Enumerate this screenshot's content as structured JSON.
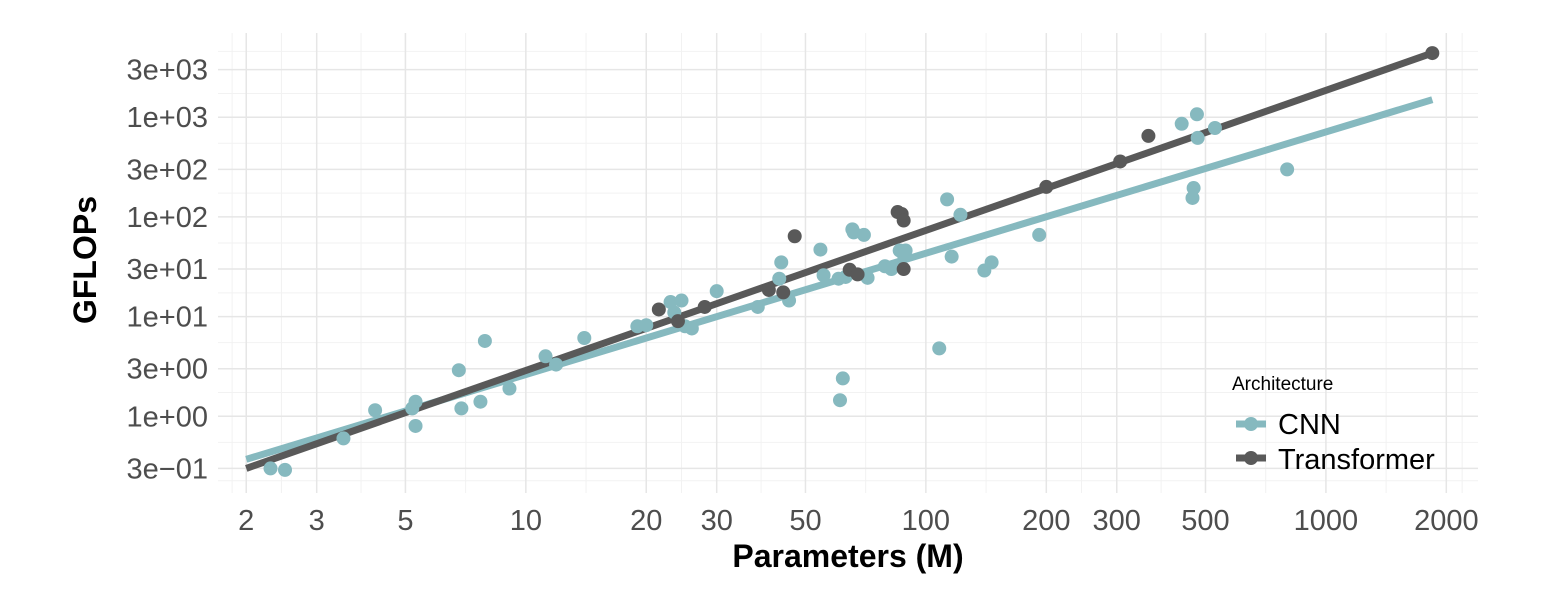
{
  "chart_data": {
    "type": "scatter",
    "xlabel": "Parameters (M)",
    "ylabel": "GFLOPs",
    "x_scale": "log",
    "y_scale": "log",
    "xlim": [
      1.7,
      2400
    ],
    "ylim": [
      0.17,
      7000
    ],
    "x_ticks": [
      2,
      3,
      5,
      10,
      20,
      30,
      50,
      100,
      200,
      300,
      500,
      1000,
      2000
    ],
    "x_tick_labels": [
      "2",
      "3",
      "5",
      "10",
      "20",
      "30",
      "50",
      "100",
      "200",
      "300",
      "500",
      "1000",
      "2000"
    ],
    "y_ticks": [
      0.3,
      1,
      3,
      10,
      30,
      100,
      300,
      1000,
      3000
    ],
    "y_tick_labels": [
      "3e−01",
      "1e+00",
      "3e+00",
      "1e+01",
      "3e+01",
      "1e+02",
      "3e+02",
      "1e+03",
      "3e+03"
    ],
    "grid": true,
    "legend": {
      "title": "Architecture",
      "position": "bottom-right",
      "entries": [
        "CNN",
        "Transformer"
      ]
    },
    "series": [
      {
        "name": "CNN",
        "color": "#86b9bf",
        "fit_line": {
          "x": [
            2,
            1845
          ],
          "y": [
            0.37,
            1500
          ]
        },
        "points": [
          [
            2.3,
            0.3
          ],
          [
            2.5,
            0.29
          ],
          [
            3.5,
            0.6
          ],
          [
            4.2,
            1.15
          ],
          [
            5.2,
            1.2
          ],
          [
            5.3,
            1.4
          ],
          [
            5.3,
            0.8
          ],
          [
            6.8,
            2.9
          ],
          [
            6.9,
            1.2
          ],
          [
            7.7,
            1.4
          ],
          [
            7.9,
            5.7
          ],
          [
            9.1,
            1.9
          ],
          [
            11.2,
            4.0
          ],
          [
            11.9,
            3.3
          ],
          [
            14.0,
            6.1
          ],
          [
            19.0,
            8.0
          ],
          [
            20.0,
            8.2
          ],
          [
            23.0,
            14.0
          ],
          [
            23.5,
            11.0
          ],
          [
            24.5,
            14.5
          ],
          [
            25.0,
            8.0
          ],
          [
            26.0,
            7.6
          ],
          [
            30.0,
            18.0
          ],
          [
            38.0,
            12.5
          ],
          [
            43.0,
            24.0
          ],
          [
            43.5,
            35.0
          ],
          [
            45.5,
            14.5
          ],
          [
            54.5,
            47.0
          ],
          [
            55.5,
            26.0
          ],
          [
            60.5,
            24.0
          ],
          [
            61.0,
            1.45
          ],
          [
            62.0,
            2.4
          ],
          [
            63.0,
            25.0
          ],
          [
            65.5,
            75.0
          ],
          [
            66.0,
            70.0
          ],
          [
            70.0,
            66.0
          ],
          [
            71.5,
            24.5
          ],
          [
            79.0,
            32.0
          ],
          [
            82.0,
            30.0
          ],
          [
            86.0,
            46.0
          ],
          [
            88.0,
            42.0
          ],
          [
            89.0,
            46.0
          ],
          [
            108.0,
            4.8
          ],
          [
            113.0,
            150.0
          ],
          [
            116.0,
            40.0
          ],
          [
            122.0,
            105.0
          ],
          [
            140.0,
            29.0
          ],
          [
            146.0,
            35.0
          ],
          [
            192.0,
            66.0
          ],
          [
            436.0,
            860.0
          ],
          [
            464.0,
            155.0
          ],
          [
            467.0,
            195.0
          ],
          [
            476.0,
            1070.0
          ],
          [
            478.0,
            620.0
          ],
          [
            528.0,
            780.0
          ],
          [
            800.0,
            300.0
          ]
        ]
      },
      {
        "name": "Transformer",
        "color": "#595959",
        "fit_line": {
          "x": [
            2,
            1845
          ],
          "y": [
            0.3,
            4400
          ]
        },
        "points": [
          [
            21.5,
            11.8
          ],
          [
            24.0,
            9.0
          ],
          [
            28.0,
            12.5
          ],
          [
            40.5,
            18.5
          ],
          [
            44.0,
            17.5
          ],
          [
            47.0,
            64.0
          ],
          [
            64.5,
            29.5
          ],
          [
            67.5,
            26.5
          ],
          [
            85.0,
            112.0
          ],
          [
            87.0,
            107.0
          ],
          [
            88.0,
            92.0
          ],
          [
            88.0,
            30.0
          ],
          [
            200.0,
            200.0
          ],
          [
            306.0,
            360.0
          ],
          [
            360.0,
            650.0
          ],
          [
            1845.0,
            4400.0
          ]
        ]
      }
    ]
  }
}
